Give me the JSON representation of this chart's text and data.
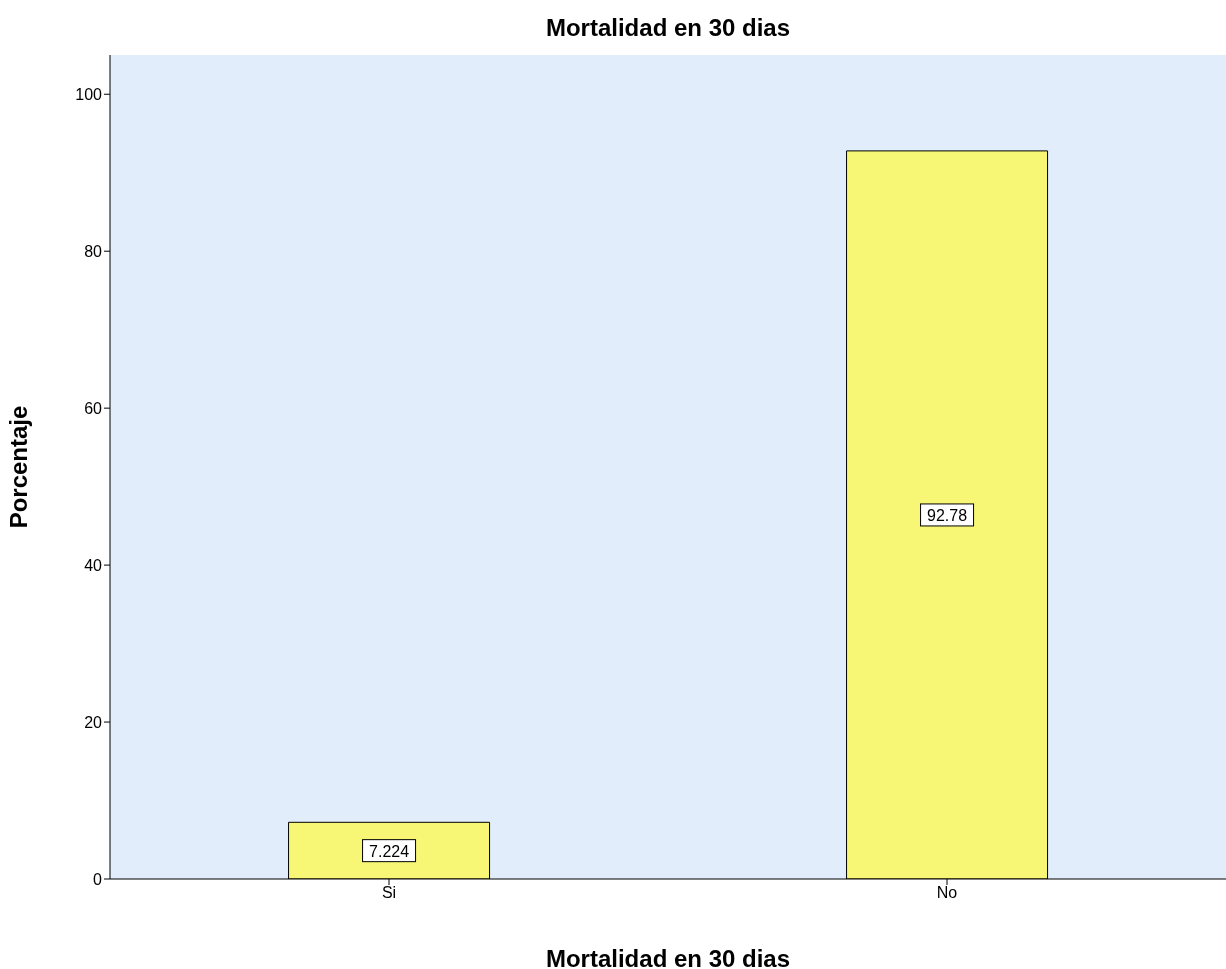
{
  "chart_data": {
    "type": "bar",
    "title": "Mortalidad en 30 dias",
    "xlabel": "Mortalidad en 30 dias",
    "ylabel": "Porcentaje",
    "categories": [
      "Si",
      "No"
    ],
    "values": [
      7.224,
      92.78
    ],
    "color": "#f8f775",
    "ylim": [
      0,
      105
    ],
    "yticks": [
      0,
      20,
      40,
      60,
      80,
      100
    ],
    "grid": false,
    "data_labels": true
  }
}
